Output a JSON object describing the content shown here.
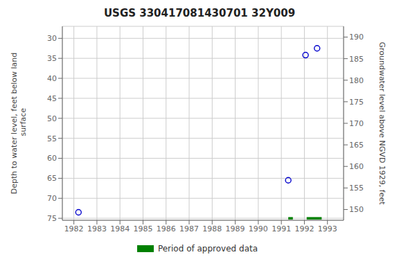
{
  "chart_data": {
    "type": "scatter",
    "title": "USGS 330417081430701 32Y009",
    "ylabel": "Depth to water level, feet below land\n surface",
    "y2label": "Groundwater level above NGVD 1929, feet",
    "x": [
      1982.2,
      1991.3,
      1992.05,
      1992.55
    ],
    "values": [
      73.5,
      65.5,
      34.2,
      32.5
    ],
    "color": "#0000cc",
    "marker": "circle",
    "xlim": [
      1981.5,
      1993.7
    ],
    "xticks": [
      1982,
      1983,
      1984,
      1985,
      1986,
      1987,
      1988,
      1989,
      1990,
      1991,
      1992,
      1993
    ],
    "ylim": [
      75.5,
      27.0
    ],
    "yticks": [
      30,
      35,
      40,
      45,
      50,
      55,
      60,
      65,
      70,
      75
    ],
    "y2lim": [
      147.5,
      192.5
    ],
    "y2ticks": [
      190,
      185,
      180,
      175,
      170,
      165,
      160,
      155,
      150
    ],
    "grid": true,
    "legend": "bottom",
    "approved_periods": {
      "name": "Period of approved data",
      "color": "#008000",
      "y": 75.0,
      "height": 0.6,
      "x_start": [
        1991.3,
        1992.1
      ],
      "x_end": [
        1991.5,
        1992.75
      ]
    }
  }
}
